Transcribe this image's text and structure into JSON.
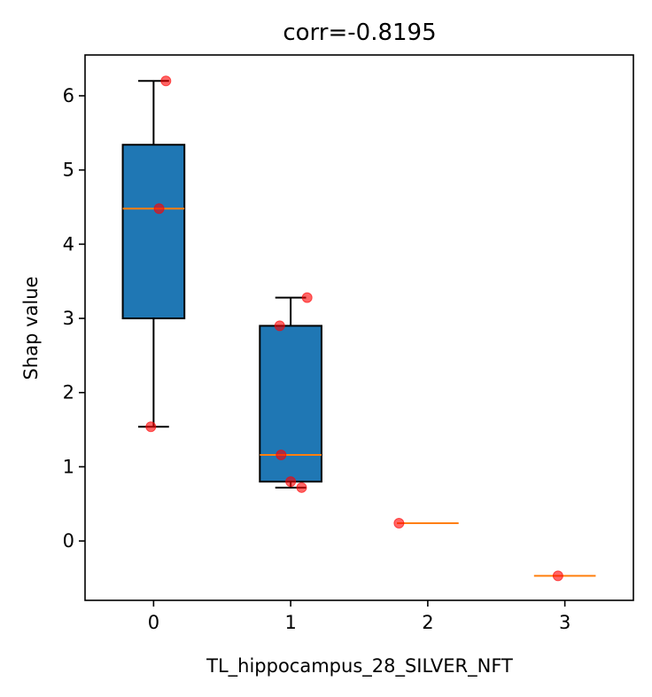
{
  "chart_data": {
    "type": "box",
    "title": "corr=-0.8195",
    "xlabel": "TL_hippocampus_28_SILVER_NFT",
    "ylabel": "Shap value",
    "xlim": [
      -0.5,
      3.5
    ],
    "ylim": [
      -0.8,
      6.55
    ],
    "x_ticks": [
      0,
      1,
      2,
      3
    ],
    "y_ticks": [
      0,
      1,
      2,
      3,
      4,
      5,
      6
    ],
    "grid": false,
    "colors": {
      "box_fill": "#1f77b4",
      "median": "#ff7f0e",
      "points": "#ff0000"
    },
    "boxes": [
      {
        "x": 0,
        "q1": 3.0,
        "median": 4.48,
        "q3": 5.34,
        "whisker_low": 1.54,
        "whisker_high": 6.2
      },
      {
        "x": 1,
        "q1": 0.8,
        "median": 1.16,
        "q3": 2.9,
        "whisker_low": 0.72,
        "whisker_high": 3.28
      },
      {
        "x": 2,
        "q1": 0.24,
        "median": 0.24,
        "q3": 0.24,
        "whisker_low": 0.24,
        "whisker_high": 0.24
      },
      {
        "x": 3,
        "q1": -0.47,
        "median": -0.47,
        "q3": -0.47,
        "whisker_low": -0.47,
        "whisker_high": -0.47
      }
    ],
    "points": [
      {
        "x": 0.09,
        "y": 6.2
      },
      {
        "x": 0.04,
        "y": 4.48
      },
      {
        "x": -0.02,
        "y": 1.54
      },
      {
        "x": 1.12,
        "y": 3.28
      },
      {
        "x": 0.92,
        "y": 2.9
      },
      {
        "x": 0.93,
        "y": 1.16
      },
      {
        "x": 1.0,
        "y": 0.8
      },
      {
        "x": 1.08,
        "y": 0.72
      },
      {
        "x": 1.79,
        "y": 0.24
      },
      {
        "x": 2.95,
        "y": -0.47
      }
    ]
  }
}
